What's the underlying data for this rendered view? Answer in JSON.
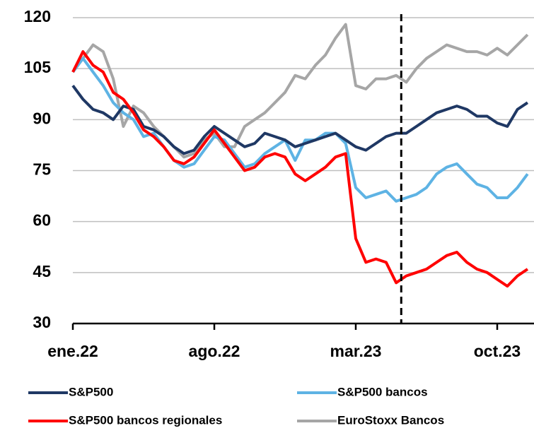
{
  "chart_data": {
    "type": "line",
    "categories": [
      "ene.22",
      null,
      null,
      null,
      null,
      null,
      null,
      null,
      null,
      null,
      null,
      null,
      null,
      null,
      "ago.22",
      null,
      null,
      null,
      null,
      null,
      null,
      null,
      null,
      null,
      null,
      null,
      null,
      null,
      "mar.23",
      null,
      null,
      null,
      null,
      null,
      null,
      null,
      null,
      null,
      null,
      null,
      null,
      null,
      "oct.23",
      null,
      null,
      null
    ],
    "series": [
      {
        "name": "EuroStoxx Bancos",
        "color": "#a6a6a6",
        "values": [
          104,
          108,
          112,
          110,
          102,
          88,
          94,
          92,
          88,
          85,
          82,
          79,
          80,
          84,
          86,
          82,
          82,
          88,
          90,
          92,
          95,
          98,
          103,
          102,
          106,
          109,
          114,
          118,
          100,
          99,
          102,
          102,
          103,
          101,
          105,
          108,
          110,
          112,
          111,
          110,
          110,
          109,
          111,
          109,
          112,
          115
        ]
      },
      {
        "name": "S&P500 bancos",
        "color": "#5eb3e4",
        "values": [
          104,
          108,
          104,
          100,
          95,
          92,
          90,
          85,
          86,
          82,
          78,
          76,
          77,
          81,
          85,
          84,
          80,
          76,
          77,
          80,
          82,
          84,
          78,
          84,
          84,
          86,
          86,
          83,
          70,
          67,
          68,
          69,
          66,
          67,
          68,
          70,
          74,
          76,
          77,
          74,
          71,
          70,
          67,
          67,
          70,
          74
        ]
      },
      {
        "name": "S&P500",
        "color": "#1f3864",
        "values": [
          100,
          96,
          93,
          92,
          90,
          94,
          93,
          88,
          87,
          85,
          82,
          80,
          81,
          85,
          88,
          86,
          84,
          82,
          83,
          86,
          85,
          84,
          82,
          83,
          84,
          85,
          86,
          84,
          82,
          81,
          83,
          85,
          86,
          86,
          88,
          90,
          92,
          93,
          94,
          93,
          91,
          91,
          89,
          88,
          93,
          95
        ]
      },
      {
        "name": "S&P500 bancos regionales",
        "color": "#ff0000",
        "values": [
          104,
          110,
          106,
          104,
          98,
          96,
          92,
          87,
          85,
          82,
          78,
          77,
          79,
          83,
          87,
          83,
          79,
          75,
          76,
          79,
          80,
          79,
          74,
          72,
          74,
          76,
          79,
          80,
          55,
          48,
          49,
          48,
          42,
          44,
          45,
          46,
          48,
          50,
          51,
          48,
          46,
          45,
          43,
          41,
          44,
          46
        ]
      }
    ],
    "ylim": [
      30,
      120
    ],
    "yticks": [
      30,
      45,
      60,
      75,
      90,
      105,
      120
    ],
    "grid": true,
    "marker_x": 32.5
  }
}
